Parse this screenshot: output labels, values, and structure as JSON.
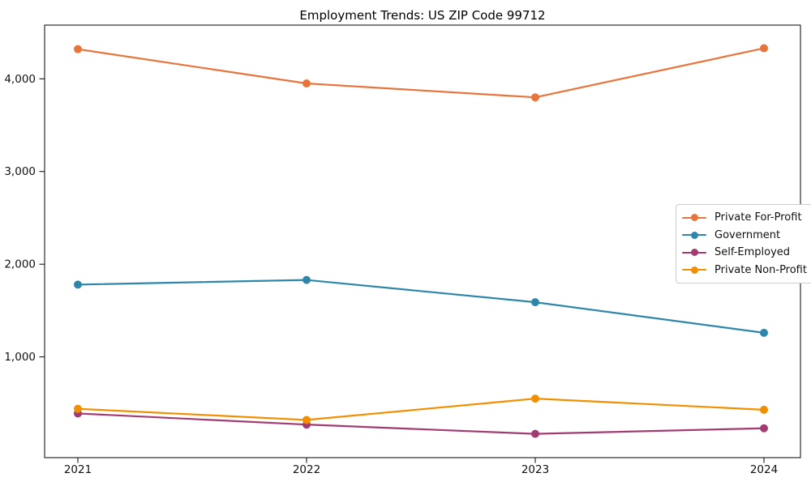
{
  "title": "Employment Trends: US ZIP Code 99712",
  "chart_data": {
    "type": "line",
    "categories": [
      "2021",
      "2022",
      "2023",
      "2024"
    ],
    "series": [
      {
        "name": "Private For-Profit",
        "color": "#e8743b",
        "values": [
          4320,
          3950,
          3800,
          4330
        ]
      },
      {
        "name": "Government",
        "color": "#2e86ab",
        "values": [
          1780,
          1830,
          1590,
          1260
        ]
      },
      {
        "name": "Self-Employed",
        "color": "#a23b72",
        "values": [
          390,
          270,
          170,
          230
        ]
      },
      {
        "name": "Private Non-Profit",
        "color": "#f18f01",
        "values": [
          440,
          320,
          550,
          430
        ]
      }
    ],
    "ytick_values": [
      1000,
      2000,
      3000,
      4000
    ],
    "ytick_labels": [
      "1,000",
      "2,000",
      "3,000",
      "4,000"
    ],
    "title": "Employment Trends: US ZIP Code 99712",
    "xlabel": "",
    "ylabel": "",
    "ylim": [
      -100,
      4600
    ],
    "grid": false,
    "legend_position": "center-right",
    "marker": "circle"
  }
}
